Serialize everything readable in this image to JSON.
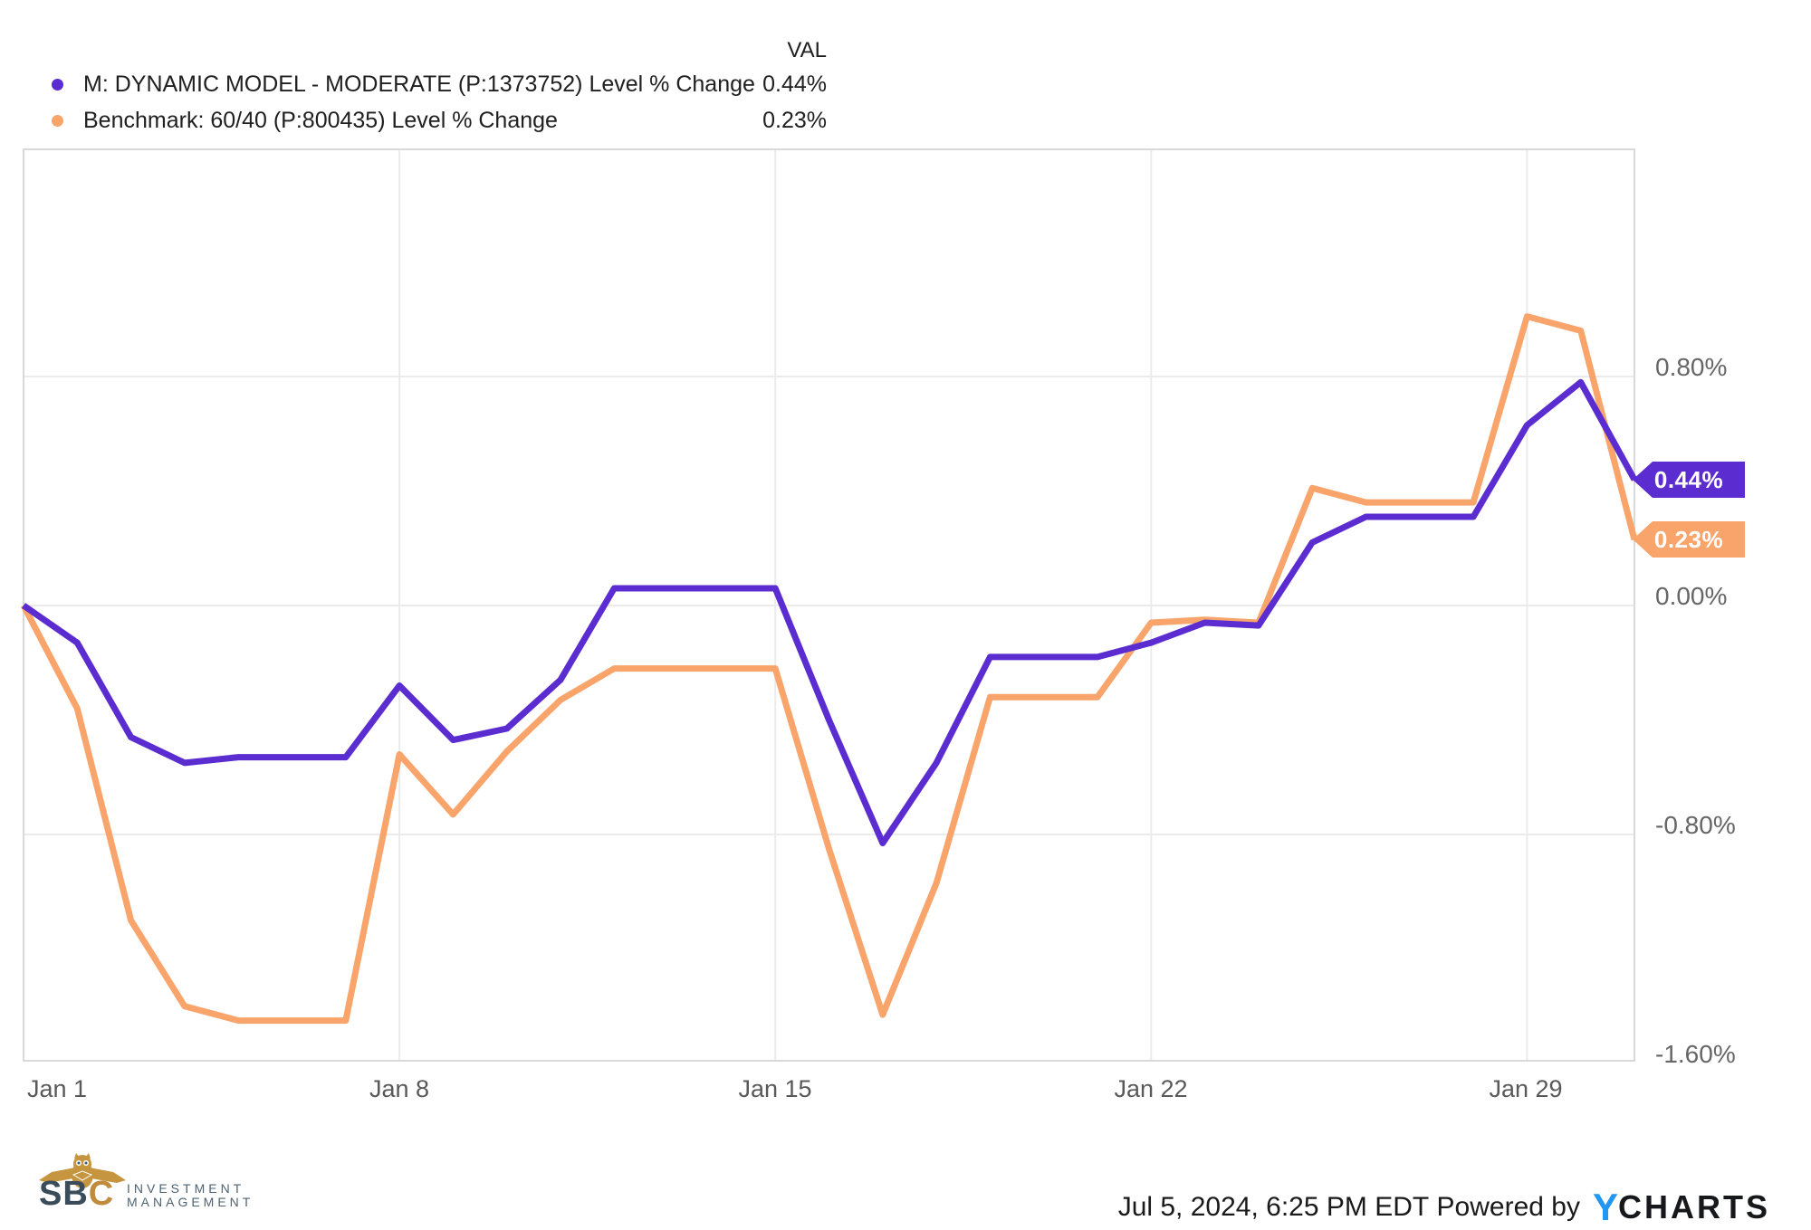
{
  "legend": {
    "val_header": "VAL",
    "rows": [
      {
        "label": "M: DYNAMIC MODEL - MODERATE (P:1373752) Level % Change",
        "value": "0.44%",
        "color": "#5B2DD1"
      },
      {
        "label": "Benchmark: 60/40 (P:800435) Level % Change",
        "value": "0.23%",
        "color": "#F9A46B"
      }
    ]
  },
  "chart_data": {
    "type": "line",
    "title": "",
    "xlabel": "",
    "ylabel": "Level % Change",
    "grid": true,
    "legend_position": "top-left",
    "ylim": [
      -1.67,
      1.59
    ],
    "x": [
      "Jan 1",
      "Jan 2",
      "Jan 3",
      "Jan 4",
      "Jan 5",
      "Jan 6",
      "Jan 7",
      "Jan 8",
      "Jan 9",
      "Jan 10",
      "Jan 11",
      "Jan 12",
      "Jan 13",
      "Jan 14",
      "Jan 15",
      "Jan 16",
      "Jan 17",
      "Jan 18",
      "Jan 19",
      "Jan 20",
      "Jan 21",
      "Jan 22",
      "Jan 23",
      "Jan 24",
      "Jan 25",
      "Jan 26",
      "Jan 27",
      "Jan 28",
      "Jan 29",
      "Jan 30",
      "Jan 31"
    ],
    "x_ticks": [
      "Jan 1",
      "Jan 8",
      "Jan 15",
      "Jan 22",
      "Jan 29"
    ],
    "y_ticks": [
      "0.80%",
      "0.00%",
      "-0.80%",
      "-1.60%"
    ],
    "y_tick_values": [
      0.8,
      0.0,
      -0.8,
      -1.6
    ],
    "series": [
      {
        "name": "M: DYNAMIC MODEL - MODERATE (P:1373752) Level % Change",
        "color": "#5B2DD1",
        "end_label": "0.44%",
        "values": [
          0.0,
          -0.13,
          -0.46,
          -0.55,
          -0.53,
          -0.53,
          -0.53,
          -0.28,
          -0.47,
          -0.43,
          -0.26,
          0.06,
          0.06,
          0.06,
          0.06,
          -0.4,
          -0.83,
          -0.55,
          -0.18,
          -0.18,
          -0.18,
          -0.13,
          -0.06,
          -0.07,
          0.22,
          0.31,
          0.31,
          0.31,
          0.63,
          0.78,
          0.44
        ]
      },
      {
        "name": "Benchmark: 60/40 (P:800435) Level % Change",
        "color": "#F9A46B",
        "end_label": "0.23%",
        "values": [
          0.0,
          -0.36,
          -1.1,
          -1.4,
          -1.45,
          -1.45,
          -1.45,
          -0.52,
          -0.73,
          -0.51,
          -0.33,
          -0.22,
          -0.22,
          -0.22,
          -0.22,
          -0.85,
          -1.43,
          -0.97,
          -0.32,
          -0.32,
          -0.32,
          -0.06,
          -0.05,
          -0.06,
          0.41,
          0.36,
          0.36,
          0.36,
          1.01,
          0.96,
          0.23
        ]
      }
    ]
  },
  "footer": {
    "timestamp": "Jul 5, 2024, 6:25 PM EDT",
    "powered_by": "Powered by",
    "ycharts_y": "Y",
    "ycharts_rest": "CHARTS"
  },
  "branding": {
    "sbc_dark": "SB",
    "sbc_gold": "C",
    "line1": "INVESTMENT",
    "line2": "MANAGEMENT"
  }
}
